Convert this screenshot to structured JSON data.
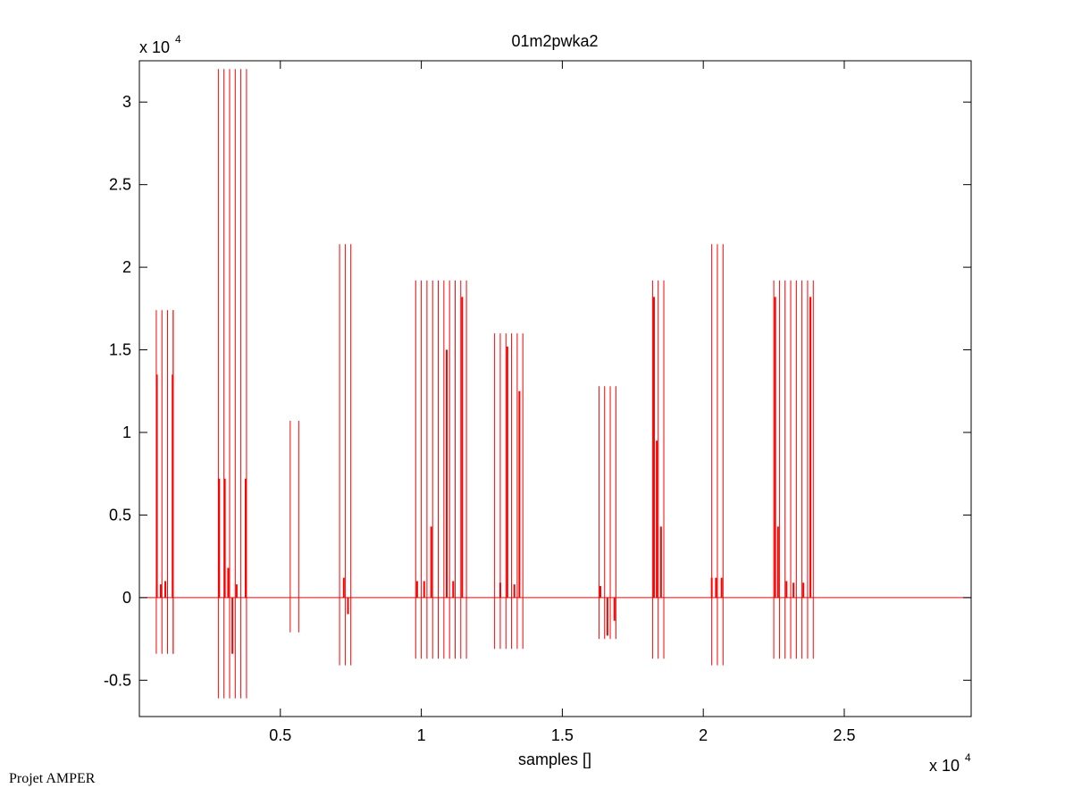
{
  "credit": "Projet AMPER",
  "chart_data": {
    "type": "line",
    "title": "01m2pwka2",
    "xlabel": "samples []",
    "ylabel": "",
    "xlim": [
      0,
      29500
    ],
    "ylim": [
      -7200,
      32500
    ],
    "x_multiplier_label": {
      "base": "x 10",
      "exp": "4"
    },
    "y_multiplier_label": {
      "base": "x 10",
      "exp": "4"
    },
    "x_ticks": [
      5000,
      10000,
      15000,
      20000,
      25000
    ],
    "x_tick_labels": [
      "0.5",
      "1",
      "1.5",
      "2",
      "2.5"
    ],
    "y_ticks": [
      -5000,
      0,
      5000,
      10000,
      15000,
      20000,
      25000,
      30000
    ],
    "y_tick_labels": [
      "-0.5",
      "0",
      "0.5",
      "1",
      "1.5",
      "2",
      "2.5",
      "3"
    ],
    "grid": false,
    "color": "#ff0000",
    "series": [
      {
        "baseline": 0,
        "groups": [
          {
            "x": [
              600,
              800,
              1000,
              1200,
              1200
            ],
            "y_max": 17400,
            "y_min": -3400,
            "inner_x": [
              620,
              760,
              920,
              1180
            ],
            "inner_y": [
              13500,
              800,
              1000,
              13500
            ]
          },
          {
            "x": [
              2800,
              3000,
              3200,
              3400,
              3600,
              3800
            ],
            "y_max": 32000,
            "y_min": -6100,
            "inner_x": [
              2830,
              3030,
              3150,
              3300,
              3450,
              3770
            ],
            "inner_y": [
              7200,
              7200,
              1800,
              -3400,
              800,
              7200
            ]
          },
          {
            "x": [
              5350,
              5650
            ],
            "y_max": 10700,
            "y_min": -2100,
            "inner_x": [],
            "inner_y": []
          },
          {
            "x": [
              7100,
              7300,
              7500
            ],
            "y_max": 21400,
            "y_min": -4100,
            "inner_x": [
              7250,
              7400
            ],
            "inner_y": [
              1200,
              -1000
            ]
          },
          {
            "x": [
              9800,
              10000,
              10200,
              10400,
              10600,
              10800,
              11000,
              11200,
              11400,
              11600
            ],
            "y_max": 19200,
            "y_min": -3700,
            "inner_x": [
              9850,
              10100,
              10350,
              10900,
              11130,
              11450
            ],
            "inner_y": [
              1000,
              1000,
              4300,
              15000,
              1000,
              18200
            ]
          },
          {
            "x": [
              12600,
              12800,
              13000,
              13200,
              13400,
              13600
            ],
            "y_max": 16000,
            "y_min": -3100,
            "inner_x": [
              12800,
              13050,
              13300,
              13480
            ],
            "inner_y": [
              900,
              15200,
              800,
              12500
            ]
          },
          {
            "x": [
              16300,
              16500,
              16700,
              16900
            ],
            "y_max": 12800,
            "y_min": -2500,
            "inner_x": [
              16350,
              16600,
              16850
            ],
            "inner_y": [
              700,
              -2300,
              -1400
            ]
          },
          {
            "x": [
              18200,
              18400,
              18600
            ],
            "y_max": 19200,
            "y_min": -3700,
            "inner_x": [
              18250,
              18350,
              18500
            ],
            "inner_y": [
              18200,
              9500,
              4300
            ]
          },
          {
            "x": [
              20300,
              20500,
              20700
            ],
            "y_max": 21400,
            "y_min": -4100,
            "inner_x": [
              20300,
              20450,
              20650
            ],
            "inner_y": [
              1200,
              1200,
              1200
            ]
          },
          {
            "x": [
              22500,
              22700,
              22900,
              23100,
              23300,
              23500,
              23700,
              23900
            ],
            "y_max": 19200,
            "y_min": -3700,
            "inner_x": [
              22550,
              22650,
              22950,
              23200,
              23550,
              23800
            ],
            "inner_y": [
              18200,
              4300,
              1000,
              900,
              900,
              18200
            ]
          }
        ]
      }
    ]
  }
}
